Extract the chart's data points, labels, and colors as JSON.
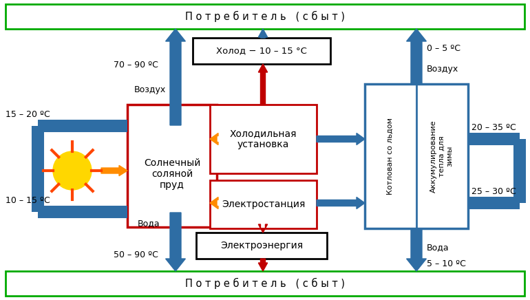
{
  "bg_color": "#ffffff",
  "title_top": "П о т р е б и т е л ь   ( с б ы т )",
  "title_bottom": "П о т р е б и т е л ь   ( с б ы т )",
  "box_solar": "Солнечный\nсоляной\nпруд",
  "box_cold_machine": "Холодильная\nустановка",
  "box_power_station": "Электростанция",
  "box_cold_output": "Холод − 10 – 15 °С",
  "box_electricity": "Электроэнергия",
  "box_pit": "Котлован со льдом",
  "box_accum": "Аккумулирование\nтепла для\nзимы",
  "label_70_90": "70 – 90 ºC",
  "label_15_20": "15 – 20 ºC",
  "label_10_15": "10 – 15 ºC",
  "label_50_90": "50 – 90 ºC",
  "label_vozduh_left": "Воздух",
  "label_voda_left": "Вода",
  "label_0_5": "0 – 5 ºC",
  "label_vozduh_right": "Воздух",
  "label_20_35": "20 – 35 ºC",
  "label_25_30": "25 – 30 ºC",
  "label_voda_right": "Вода",
  "label_5_10": "5 – 10 ºC",
  "color_blue": "#2E6DA4",
  "color_red": "#C00000",
  "color_orange": "#FF8C00",
  "color_green_border": "#00AA00",
  "color_black": "#000000",
  "color_sun": "#FFD700",
  "color_sun_ray": "#FF4500"
}
